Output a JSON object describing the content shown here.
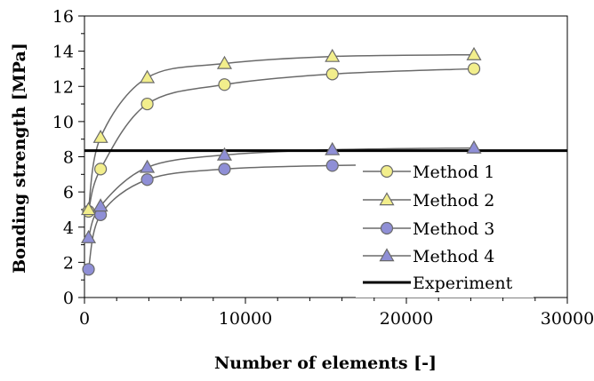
{
  "chart_data": {
    "type": "line",
    "xlabel": "Number of elements [-]",
    "ylabel": "Bonding strength [MPa]",
    "xlim": [
      0,
      30000
    ],
    "ylim": [
      0,
      16
    ],
    "xticks": [
      0,
      10000,
      20000,
      30000
    ],
    "yticks": [
      0,
      2,
      4,
      6,
      8,
      10,
      12,
      14,
      16
    ],
    "grid": false,
    "legend_position": "bottom-right",
    "x": [
      250,
      1000,
      3900,
      8700,
      15400,
      24200
    ],
    "series": [
      {
        "name": "Method 1",
        "marker": "circle",
        "color": "#f2ee8c",
        "values": [
          4.9,
          7.3,
          11.0,
          12.1,
          12.7,
          13.0
        ]
      },
      {
        "name": "Method 2",
        "marker": "triangle",
        "color": "#f2ee8c",
        "values": [
          5.0,
          9.1,
          12.5,
          13.3,
          13.7,
          13.8
        ]
      },
      {
        "name": "Method 3",
        "marker": "circle",
        "color": "#8f8fd6",
        "values": [
          1.6,
          4.7,
          6.7,
          7.3,
          7.5,
          7.6
        ]
      },
      {
        "name": "Method 4",
        "marker": "triangle",
        "color": "#8f8fd6",
        "values": [
          3.4,
          5.2,
          7.4,
          8.1,
          8.4,
          8.5
        ]
      }
    ],
    "reference_lines": [
      {
        "name": "Experiment",
        "y": 8.35,
        "color": "#000000"
      }
    ]
  }
}
